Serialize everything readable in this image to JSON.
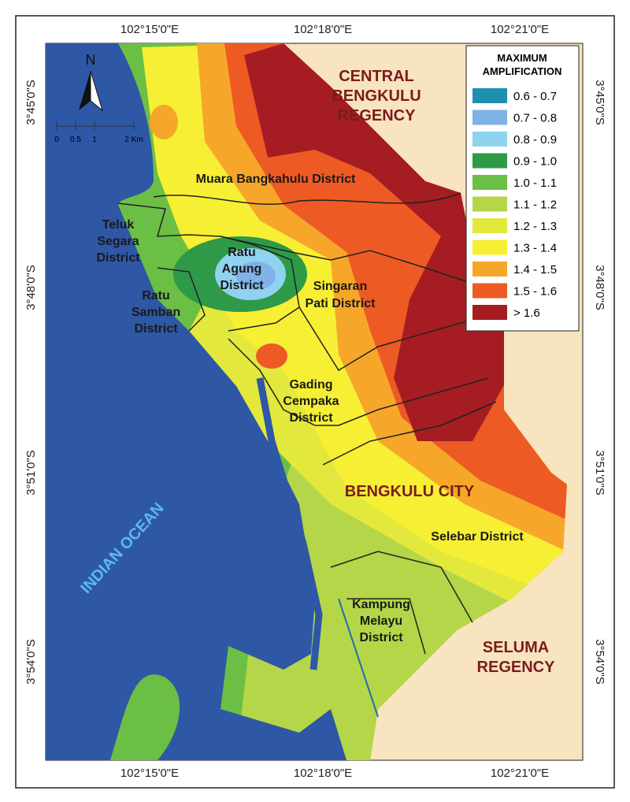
{
  "coordinates": {
    "top": [
      "102°15'0\"E",
      "102°18'0\"E",
      "102°21'0\"E"
    ],
    "bottom": [
      "102°15'0\"E",
      "102°18'0\"E",
      "102°21'0\"E"
    ],
    "left": [
      "3°45'0\"S",
      "3°48'0\"S",
      "3°51'0\"S",
      "3°54'0\"S"
    ],
    "right": [
      "3°45'0\"S",
      "3°48'0\"S",
      "3°51'0\"S",
      "3°54'0\"S"
    ]
  },
  "north_arrow": "N",
  "scale_bar": [
    "0",
    "0.5",
    "1",
    "2 Km"
  ],
  "legend": {
    "title": [
      "MAXIMUM",
      "AMPLIFICATION"
    ],
    "items": [
      {
        "label": "0.6 - 0.7",
        "color": "#1f8fb0"
      },
      {
        "label": "0.7 - 0.8",
        "color": "#7fb2e6"
      },
      {
        "label": "0.8 - 0.9",
        "color": "#8fd3f0"
      },
      {
        "label": "0.9 - 1.0",
        "color": "#2e9a48"
      },
      {
        "label": "1.0 - 1.1",
        "color": "#6cbf45"
      },
      {
        "label": "1.1 - 1.2",
        "color": "#b5d648"
      },
      {
        "label": "1.2 - 1.3",
        "color": "#e2e83c"
      },
      {
        "label": "1.3 - 1.4",
        "color": "#f7ef34"
      },
      {
        "label": "1.4 - 1.5",
        "color": "#f6a72a"
      },
      {
        "label": "1.5 - 1.6",
        "color": "#ee5a24"
      },
      {
        "label": "> 1.6",
        "color": "#a51d22"
      }
    ]
  },
  "regions": [
    {
      "lines": [
        "CENTRAL",
        "BENGKULU",
        "REGENCY"
      ]
    },
    {
      "lines": [
        "BENGKULU CITY"
      ]
    },
    {
      "lines": [
        "SELUMA",
        "REGENCY"
      ]
    },
    {
      "lines": [
        "INDIAN OCEAN"
      ]
    }
  ],
  "districts": [
    {
      "lines": [
        "Muara Bangkahulu District"
      ]
    },
    {
      "lines": [
        "Teluk",
        "Segara",
        "District"
      ]
    },
    {
      "lines": [
        "Ratu",
        "Agung",
        "District"
      ]
    },
    {
      "lines": [
        "Singaran",
        "Pati District"
      ]
    },
    {
      "lines": [
        "Ratu",
        "Samban",
        "District"
      ]
    },
    {
      "lines": [
        "Gading",
        "Cempaka",
        "District"
      ]
    },
    {
      "lines": [
        "Selebar District"
      ]
    },
    {
      "lines": [
        "Kampung",
        "Melayu",
        "District"
      ]
    }
  ]
}
